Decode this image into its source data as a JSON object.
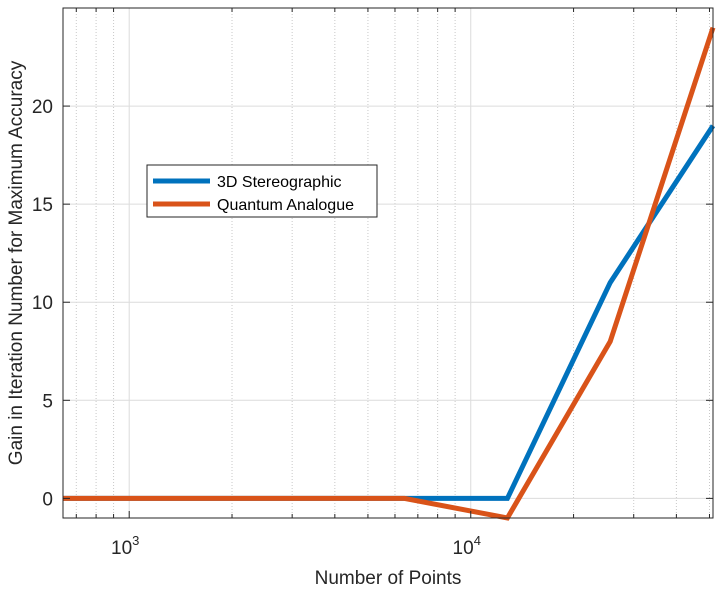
{
  "chart_data": {
    "type": "line",
    "xlabel": "Number of Points",
    "ylabel": "Gain in Iteration Number for Maximum Accuracy",
    "xscale": "log",
    "xlim": [
      640,
      51200
    ],
    "ylim": [
      -1,
      25
    ],
    "x_ticks": [
      {
        "value": 1000,
        "base": "10",
        "exp": "3"
      },
      {
        "value": 10000,
        "base": "10",
        "exp": "4"
      }
    ],
    "y_ticks": [
      0,
      5,
      10,
      15,
      20
    ],
    "grid": true,
    "legend_position": "upper-left (inside axes)",
    "x": [
      640,
      1280,
      3200,
      6400,
      12800,
      25600,
      51200
    ],
    "series": [
      {
        "name": "3D Stereographic",
        "color": "#0072BD",
        "values": [
          0,
          0,
          0,
          0,
          0,
          11,
          19
        ]
      },
      {
        "name": "Quantum Analogue",
        "color": "#D95319",
        "values": [
          0,
          0,
          0,
          0,
          -1,
          8,
          24
        ]
      }
    ]
  }
}
